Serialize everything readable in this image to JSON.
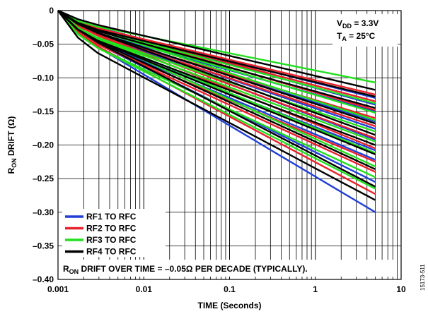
{
  "chart_data": {
    "type": "line",
    "xscale": "log",
    "xlim": [
      0.001,
      10
    ],
    "ylim": [
      -0.4,
      0
    ],
    "grid": true,
    "xlabel": "TIME (Seconds)",
    "ylabel": {
      "main": "R",
      "sub": "ON",
      "rest": " DRIFT (Ω)"
    },
    "x_ticks": [
      {
        "value": 0.001,
        "label": "0.001"
      },
      {
        "value": 0.01,
        "label": "0.01"
      },
      {
        "value": 0.1,
        "label": "0.1"
      },
      {
        "value": 1,
        "label": "1"
      },
      {
        "value": 10,
        "label": "10"
      }
    ],
    "y_ticks": [
      {
        "value": 0,
        "label": "0"
      },
      {
        "value": -0.05,
        "label": "–0.05"
      },
      {
        "value": -0.1,
        "label": "–0.10"
      },
      {
        "value": -0.15,
        "label": "–0.15"
      },
      {
        "value": -0.2,
        "label": "–0.20"
      },
      {
        "value": -0.25,
        "label": "–0.25"
      },
      {
        "value": -0.3,
        "label": "–0.30"
      },
      {
        "value": -0.35,
        "label": "–0.35"
      },
      {
        "value": -0.4,
        "label": "–0.40"
      }
    ],
    "conditions": {
      "vdd": {
        "main": "V",
        "sub": "DD",
        "rest": " = 3.3V"
      },
      "ta": {
        "main": "T",
        "sub": "A",
        "rest": " = 25°C"
      }
    },
    "annotation": {
      "main": "R",
      "sub": "ON",
      "rest": " DRIFT OVER TIME = –0.05Ω PER DECADE (TYPICALLY)."
    },
    "series": [
      {
        "name": "RF1 TO RFC",
        "color": "#1f3fd6",
        "x_start": 0.001,
        "x_end": 5,
        "end_values": [
          -0.3,
          -0.255,
          -0.222,
          -0.208,
          -0.192,
          -0.176,
          -0.165,
          -0.15,
          -0.14,
          -0.13
        ]
      },
      {
        "name": "RF2 TO RFC",
        "color": "#e8212b",
        "x_start": 0.001,
        "x_end": 5,
        "end_values": [
          -0.273,
          -0.24,
          -0.225,
          -0.205,
          -0.19,
          -0.172,
          -0.16,
          -0.148,
          -0.135,
          -0.125
        ]
      },
      {
        "name": "RF3 TO RFC",
        "color": "#22e01c",
        "x_start": 0.001,
        "x_end": 5,
        "end_values": [
          -0.265,
          -0.248,
          -0.232,
          -0.212,
          -0.195,
          -0.18,
          -0.163,
          -0.152,
          -0.138,
          -0.107
        ]
      },
      {
        "name": "RF4 TO RFC",
        "color": "#000000",
        "x_start": 0.001,
        "x_end": 5,
        "end_values": [
          -0.282,
          -0.262,
          -0.236,
          -0.214,
          -0.2,
          -0.185,
          -0.168,
          -0.145,
          -0.128,
          -0.118
        ]
      }
    ]
  },
  "figure_id": "15173-511"
}
